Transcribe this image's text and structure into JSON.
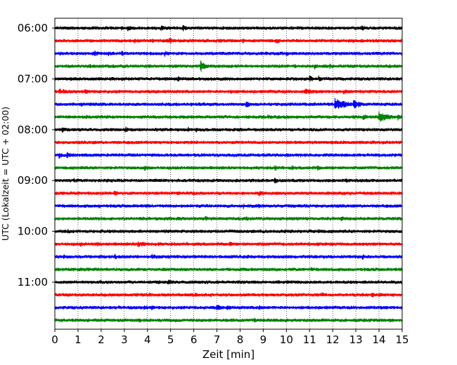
{
  "chart_data": {
    "type": "line",
    "title": "",
    "xlabel": "Zeit  [min]",
    "ylabel": "UTC (Lokalzeit = UTC + 02:00)",
    "xlim": [
      0,
      15
    ],
    "xticks": [
      0,
      1,
      2,
      3,
      4,
      5,
      6,
      7,
      8,
      9,
      10,
      11,
      12,
      13,
      14,
      15
    ],
    "grid": "vertical dotted",
    "row_start": "06:00",
    "row_interval_min": 15,
    "row_count": 24,
    "ytick_labels": [
      "06:00",
      "07:00",
      "08:00",
      "09:00",
      "10:00",
      "11:00"
    ],
    "colors": [
      "#000000",
      "#ff0000",
      "#0000ff",
      "#008000"
    ],
    "events": [
      {
        "row": 3,
        "x": 6.3,
        "amp": 1.0,
        "dur": 0.25
      },
      {
        "row": 5,
        "x": 0.2,
        "amp": 0.55,
        "dur": 0.4
      },
      {
        "row": 5,
        "x": 1.3,
        "amp": 0.4,
        "dur": 0.8
      },
      {
        "row": 5,
        "x": 10.8,
        "amp": 0.5,
        "dur": 0.8
      },
      {
        "row": 6,
        "x": 12.1,
        "amp": 1.0,
        "dur": 0.6
      },
      {
        "row": 6,
        "x": 12.9,
        "amp": 0.75,
        "dur": 0.5
      },
      {
        "row": 6,
        "x": 1.5,
        "amp": 0.35,
        "dur": 1.5
      },
      {
        "row": 7,
        "x": 14.0,
        "amp": 0.9,
        "dur": 0.6
      },
      {
        "row": 10,
        "x": 10.0,
        "amp": 0.4,
        "dur": 0.2
      },
      {
        "row": 12,
        "x": 4.5,
        "amp": 0.35,
        "dur": 0.6
      },
      {
        "row": 14,
        "x": 8.8,
        "amp": 0.45,
        "dur": 0.3
      },
      {
        "row": 16,
        "x": 7.2,
        "amp": 0.3,
        "dur": 0.6
      },
      {
        "row": 18,
        "x": 9.2,
        "amp": 0.25,
        "dur": 0.3
      },
      {
        "row": 21,
        "x": 11.5,
        "amp": 0.45,
        "dur": 0.3
      },
      {
        "row": 21,
        "x": 14.0,
        "amp": 0.45,
        "dur": 0.3
      },
      {
        "row": 23,
        "x": 13.3,
        "amp": 0.4,
        "dur": 0.3
      },
      {
        "row": 21,
        "x": 4.5,
        "amp": 0.3,
        "dur": 0.3
      },
      {
        "row": 23,
        "x": 4.1,
        "amp": 0.35,
        "dur": 0.3
      }
    ]
  }
}
